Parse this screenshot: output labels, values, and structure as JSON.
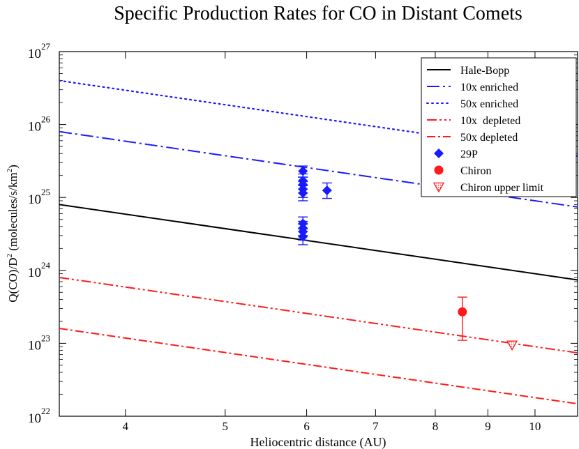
{
  "chart_data": {
    "type": "line",
    "title": "Specific Production Rates for CO in Distant Comets",
    "xlabel": "Heliocentric distance (AU)",
    "ylabel": {
      "base": "Q(CO)/D",
      "exp": "2",
      "unit_open": " (molecules/s/km",
      "unit_exp": "2",
      "unit_close": ")"
    },
    "x_scale": "log",
    "y_scale": "log",
    "xlim": [
      3.45,
      11.0
    ],
    "ylim": [
      1e+22,
      1e+27
    ],
    "x_ticks": [
      {
        "value": 4,
        "label": "4"
      },
      {
        "value": 5,
        "label": "5"
      },
      {
        "value": 6,
        "label": "6"
      },
      {
        "value": 7,
        "label": "7"
      },
      {
        "value": 8,
        "label": "8"
      },
      {
        "value": 9,
        "label": "9"
      },
      {
        "value": 10,
        "label": "10"
      }
    ],
    "y_ticks": [
      {
        "value": 1e+22,
        "base": "10",
        "exp": "22"
      },
      {
        "value": 1e+23,
        "base": "10",
        "exp": "23"
      },
      {
        "value": 1e+24,
        "base": "10",
        "exp": "24"
      },
      {
        "value": 1e+25,
        "base": "10",
        "exp": "25"
      },
      {
        "value": 1e+26,
        "base": "10",
        "exp": "26"
      },
      {
        "value": 1e+27,
        "base": "10",
        "exp": "27"
      }
    ],
    "series": [
      {
        "name": "Hale-Bopp",
        "kind": "line",
        "color": "#000000",
        "dash": "solid",
        "x": [
          3.45,
          11.0
        ],
        "y": [
          8e+24,
          7.4e+23
        ]
      },
      {
        "name": "10x enriched",
        "kind": "line",
        "color": "#1a1aff",
        "dash": "dashdot-long",
        "x": [
          3.45,
          11.0
        ],
        "y": [
          8e+25,
          7.4e+24
        ]
      },
      {
        "name": "50x enriched",
        "kind": "line",
        "color": "#1a1aff",
        "dash": "dotted",
        "x": [
          3.45,
          11.0
        ],
        "y": [
          4e+26,
          3.7e+25
        ]
      },
      {
        "name": "10x  depleted",
        "kind": "line",
        "color": "#ff1a1a",
        "dash": "dashdotdot",
        "x": [
          3.45,
          11.0
        ],
        "y": [
          8e+23,
          7.4e+22
        ]
      },
      {
        "name": "50x depleted",
        "kind": "line",
        "color": "#ff1a1a",
        "dash": "dashdot",
        "x": [
          3.45,
          11.0
        ],
        "y": [
          1.6e+23,
          1.48e+22
        ]
      },
      {
        "name": "29P",
        "kind": "diamond",
        "color": "#1a1aff",
        "points": [
          {
            "x": 5.95,
            "y": 2.3e+25,
            "lo": 1.9e+25,
            "hi": 2.7e+25
          },
          {
            "x": 5.95,
            "y": 1.7e+25,
            "lo": 1.3e+25,
            "hi": 2.1e+25
          },
          {
            "x": 5.95,
            "y": 1.5e+25,
            "lo": 1.15e+25,
            "hi": 1.9e+25
          },
          {
            "x": 5.95,
            "y": 1.3e+25,
            "lo": 1e+25,
            "hi": 1.65e+25
          },
          {
            "x": 5.95,
            "y": 1.15e+25,
            "lo": 9e+24,
            "hi": 1.45e+25
          },
          {
            "x": 5.95,
            "y": 4.4e+24,
            "lo": 3.4e+24,
            "hi": 5.4e+24
          },
          {
            "x": 5.95,
            "y": 3.8e+24,
            "lo": 3e+24,
            "hi": 4.7e+24
          },
          {
            "x": 5.95,
            "y": 3.4e+24,
            "lo": 2.6e+24,
            "hi": 4.3e+24
          },
          {
            "x": 5.95,
            "y": 2.9e+24,
            "lo": 2.25e+24,
            "hi": 3.7e+24
          },
          {
            "x": 6.28,
            "y": 1.25e+25,
            "lo": 9.7e+24,
            "hi": 1.58e+25
          }
        ]
      },
      {
        "name": "Chiron",
        "kind": "circle",
        "color": "#ff1a1a",
        "points": [
          {
            "x": 8.5,
            "y": 2.7e+23,
            "lo": 1.1e+23,
            "hi": 4.3e+23
          }
        ]
      },
      {
        "name": "Chiron upper limit",
        "kind": "triangle-down",
        "color": "#ff1a1a",
        "points": [
          {
            "x": 9.5,
            "y": 9.5e+22
          }
        ]
      }
    ],
    "legend_position": "top-right"
  }
}
